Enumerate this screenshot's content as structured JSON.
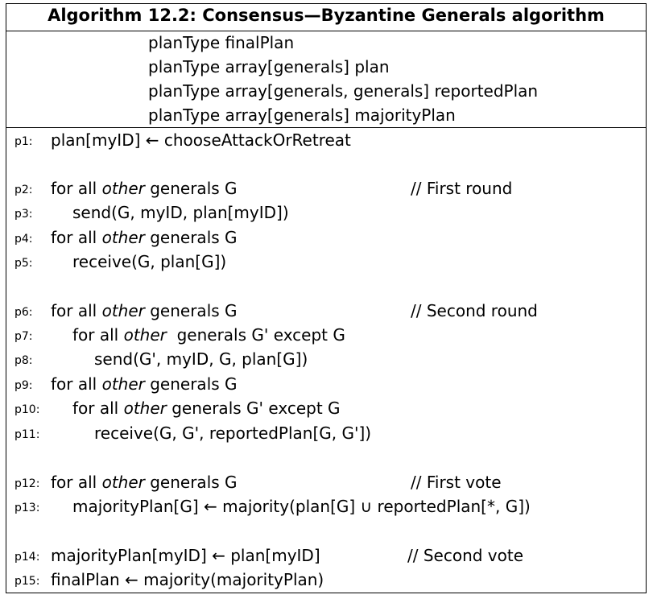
{
  "algorithm": {
    "title": "Algorithm 12.2: Consensus—Byzantine Generals algorithm",
    "declarations": [
      "planType finalPlan",
      "planType array[generals] plan",
      "planType array[generals, generals] reportedPlan",
      "planType array[generals] majorityPlan"
    ],
    "lines": [
      {
        "label": "p1:",
        "code": "plan[myID] ← chooseAttackOrRetreat",
        "comment": ""
      },
      {
        "label": "p2:",
        "pre": "for all ",
        "em": "other",
        "post": " generals G",
        "comment": "// First round"
      },
      {
        "label": "p3:",
        "code": "send(G, myID, plan[myID])",
        "comment": ""
      },
      {
        "label": "p4:",
        "pre": "for all ",
        "em": "other",
        "post": " generals G",
        "comment": ""
      },
      {
        "label": "p5:",
        "code": "receive(G, plan[G])",
        "comment": ""
      },
      {
        "label": "p6:",
        "pre": "for all ",
        "em": "other",
        "post": " generals G",
        "comment": "// Second round"
      },
      {
        "label": "p7:",
        "pre": "for all ",
        "em": "other",
        "post": "  generals G' except G",
        "comment": ""
      },
      {
        "label": "p8:",
        "code": "send(G', myID, G, plan[G])",
        "comment": ""
      },
      {
        "label": "p9:",
        "pre": "for all ",
        "em": "other",
        "post": " generals G",
        "comment": ""
      },
      {
        "label": "p10:",
        "pre": "for all ",
        "em": "other",
        "post": " generals G' except G",
        "comment": ""
      },
      {
        "label": "p11:",
        "code": "receive(G, G', reportedPlan[G, G'])",
        "comment": ""
      },
      {
        "label": "p12:",
        "pre": "for all ",
        "em": "other",
        "post": " generals G",
        "comment": "// First vote"
      },
      {
        "label": "p13:",
        "code": "majorityPlan[G] ← majority(plan[G] ∪ reportedPlan[*, G])",
        "comment": ""
      },
      {
        "label": "p14:",
        "code": "majorityPlan[myID] ← plan[myID]",
        "comment": "// Second vote"
      },
      {
        "label": "p15:",
        "code": "finalPlan ← majority(majorityPlan)",
        "comment": ""
      }
    ]
  }
}
